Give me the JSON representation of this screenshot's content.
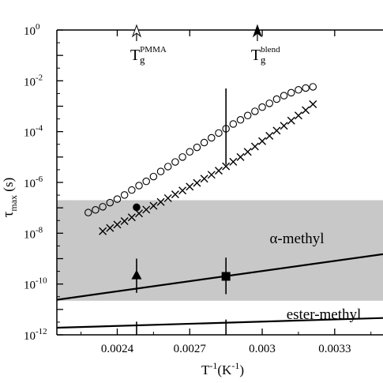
{
  "chart_data": {
    "type": "scatter",
    "x_scale": "linear",
    "y_scale": "log",
    "xlim": [
      0.00215,
      0.0035
    ],
    "ylim": [
      1e-12,
      1
    ],
    "xticks": [
      0.0024,
      0.0027,
      0.003,
      0.0033
    ],
    "xtick_labels": [
      "0.0024",
      "0.0027",
      "0.003",
      "0.0033"
    ],
    "ytick_exponents": [
      -12,
      -10,
      -8,
      -6,
      -4,
      -2,
      0
    ],
    "ytick_base": "10",
    "xlabel_main": "T",
    "xlabel_sup": "-1",
    "xlabel_unit": "(K",
    "xlabel_unit_sup": "-1",
    "xlabel_close": ")",
    "ylabel_main": "τ",
    "ylabel_sub": "max",
    "ylabel_unit": " (s)",
    "shaded_band": {
      "y_low": 2.2e-11,
      "y_high": 2e-07,
      "color": "#c8c8c8"
    },
    "circles": [
      [
        0.00228,
        6.5e-08
      ],
      [
        0.00231,
        8.3e-08
      ],
      [
        0.00234,
        1.1e-07
      ],
      [
        0.00237,
        1.6e-07
      ],
      [
        0.0024,
        2.2e-07
      ],
      [
        0.00243,
        3.2e-07
      ],
      [
        0.00246,
        5e-07
      ],
      [
        0.00249,
        7.5e-07
      ],
      [
        0.00252,
        1.1e-06
      ],
      [
        0.00255,
        1.7e-06
      ],
      [
        0.00258,
        2.7e-06
      ],
      [
        0.00261,
        4.2e-06
      ],
      [
        0.00264,
        6.4e-06
      ],
      [
        0.00267,
        1e-05
      ],
      [
        0.0027,
        1.6e-05
      ],
      [
        0.00273,
        2.4e-05
      ],
      [
        0.00276,
        3.7e-05
      ],
      [
        0.00279,
        5.7e-05
      ],
      [
        0.00282,
        8.8e-05
      ],
      [
        0.00285,
        0.00013
      ],
      [
        0.00288,
        0.0002
      ],
      [
        0.00291,
        0.00029
      ],
      [
        0.00294,
        0.00043
      ],
      [
        0.00297,
        0.00063
      ],
      [
        0.003,
        0.00092
      ],
      [
        0.00303,
        0.0013
      ],
      [
        0.00306,
        0.0019
      ],
      [
        0.00309,
        0.0026
      ],
      [
        0.00312,
        0.0034
      ],
      [
        0.00315,
        0.0044
      ],
      [
        0.00318,
        0.0052
      ],
      [
        0.00321,
        0.0058
      ]
    ],
    "crosses": [
      [
        0.00234,
        1.2e-08
      ],
      [
        0.00237,
        1.6e-08
      ],
      [
        0.0024,
        2.2e-08
      ],
      [
        0.00243,
        3e-08
      ],
      [
        0.00246,
        4.2e-08
      ],
      [
        0.00249,
        6e-08
      ],
      [
        0.00252,
        8.5e-08
      ],
      [
        0.00255,
        1.2e-07
      ],
      [
        0.00258,
        1.7e-07
      ],
      [
        0.00261,
        2.4e-07
      ],
      [
        0.00264,
        3.4e-07
      ],
      [
        0.00267,
        4.8e-07
      ],
      [
        0.0027,
        6.8e-07
      ],
      [
        0.00273,
        9.6e-07
      ],
      [
        0.00276,
        1.4e-06
      ],
      [
        0.00279,
        2e-06
      ],
      [
        0.00282,
        2.9e-06
      ],
      [
        0.00285,
        4.3e-06
      ],
      [
        0.00288,
        6.5e-06
      ],
      [
        0.00291,
        1e-05
      ],
      [
        0.00294,
        1.6e-05
      ],
      [
        0.00297,
        2.6e-05
      ],
      [
        0.003,
        4.2e-05
      ],
      [
        0.00303,
        6.8e-05
      ],
      [
        0.00306,
        0.00011
      ],
      [
        0.00309,
        0.00017
      ],
      [
        0.00312,
        0.00027
      ],
      [
        0.00315,
        0.00043
      ],
      [
        0.00318,
        0.0007
      ],
      [
        0.00321,
        0.0012
      ]
    ],
    "filled_circle": [
      0.00248,
      1.05e-07
    ],
    "triangle": {
      "x": 0.00248,
      "y": 2.2e-10,
      "err_low": 4.5e-11,
      "err_high": 1e-09
    },
    "square": {
      "x": 0.00285,
      "y": 2e-10,
      "err_low": 4e-11,
      "err_high": 1.1e-09
    },
    "vline_upper": {
      "x": 0.00285,
      "y_low": 5e-06,
      "y_high": 0.005
    },
    "lines": [
      {
        "name": "α-methyl",
        "x": [
          0.00215,
          0.0035
        ],
        "y": [
          2.4e-11,
          1.5e-09
        ]
      },
      {
        "name": "ester-methyl",
        "x": [
          0.00215,
          0.0035
        ],
        "y": [
          1.9e-12,
          4.6e-12
        ]
      }
    ],
    "bottom_ticks": [
      {
        "x": 0.00248,
        "y_low": 1e-12,
        "y_high": 3.3e-12
      },
      {
        "x": 0.00285,
        "y_low": 1e-12,
        "y_high": 4e-12
      }
    ],
    "arrows": [
      {
        "x": 0.00248,
        "style": "open",
        "label_main": "T",
        "label_sub": "g",
        "label_sup": "PMMA"
      },
      {
        "x": 0.00298,
        "style": "filled",
        "label_main": "T",
        "label_sub": "g",
        "label_sup": "blend"
      }
    ]
  }
}
